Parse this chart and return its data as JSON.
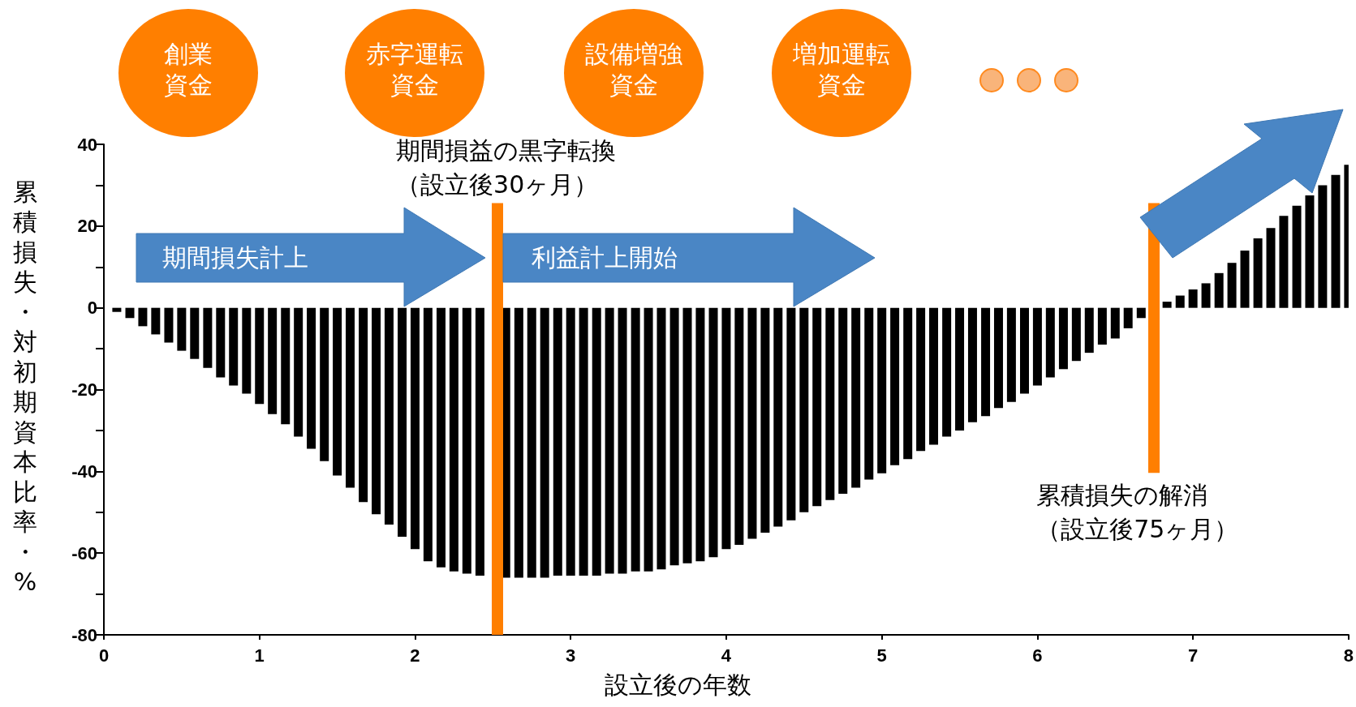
{
  "chart_data": {
    "type": "bar",
    "xlabel": "設立後の年数",
    "ylabel": "累積損失・対初期資本比率・%",
    "x": [
      0.083,
      0.167,
      0.25,
      0.333,
      0.417,
      0.5,
      0.583,
      0.667,
      0.75,
      0.833,
      0.917,
      1.0,
      1.083,
      1.167,
      1.25,
      1.333,
      1.417,
      1.5,
      1.583,
      1.667,
      1.75,
      1.833,
      1.917,
      2.0,
      2.083,
      2.167,
      2.25,
      2.333,
      2.417,
      2.5,
      2.583,
      2.667,
      2.75,
      2.833,
      2.917,
      3.0,
      3.083,
      3.167,
      3.25,
      3.333,
      3.417,
      3.5,
      3.583,
      3.667,
      3.75,
      3.833,
      3.917,
      4.0,
      4.083,
      4.167,
      4.25,
      4.333,
      4.417,
      4.5,
      4.583,
      4.667,
      4.75,
      4.833,
      4.917,
      5.0,
      5.083,
      5.167,
      5.25,
      5.333,
      5.417,
      5.5,
      5.583,
      5.667,
      5.75,
      5.833,
      5.917,
      6.0,
      6.083,
      6.167,
      6.25,
      6.333,
      6.417,
      6.5,
      6.583,
      6.667,
      6.75,
      6.833,
      6.917,
      7.0,
      7.083,
      7.167,
      7.25,
      7.333,
      7.417,
      7.5,
      7.583,
      7.667,
      7.75,
      7.833,
      7.917,
      8.0
    ],
    "series": [
      {
        "color": "#000000",
        "values": [
          -1,
          -2.5,
          -4.5,
          -6.5,
          -8.5,
          -10.5,
          -12.5,
          -14.7,
          -17,
          -19,
          -21,
          -23.5,
          -26,
          -28.5,
          -31.5,
          -34.5,
          -37.5,
          -41,
          -44,
          -47.5,
          -50.5,
          -53,
          -56,
          -59,
          -62,
          -63.5,
          -64.5,
          -65,
          -65.5,
          null,
          -66,
          -66,
          -66,
          -66,
          -65.5,
          -65.5,
          -65.5,
          -65.5,
          -65,
          -65,
          -64.5,
          -64.5,
          -64,
          -63,
          -62.5,
          -62,
          -61,
          -59,
          -58,
          -56.5,
          -55,
          -53.5,
          -52,
          -50,
          -48.5,
          -47,
          -45.5,
          -44,
          -42,
          -40.5,
          -38.5,
          -37,
          -35,
          -33.5,
          -31.5,
          -30,
          -28,
          -26.5,
          -24.5,
          -23,
          -21,
          -19,
          -17,
          -15,
          -13,
          -11,
          -9,
          -7.5,
          -5,
          -2.5,
          null,
          1.5,
          3,
          4.5,
          6,
          8.5,
          11,
          14,
          17,
          19.5,
          22.5,
          25,
          27.5,
          30,
          32.5,
          35
        ]
      }
    ],
    "xlim": [
      0,
      8
    ],
    "xticks": [
      0,
      1,
      2,
      3,
      4,
      5,
      6,
      7,
      8
    ],
    "ylim": [
      -80,
      40
    ],
    "yticks": [
      {
        "value": -80,
        "label": "-80"
      },
      {
        "value": -70,
        "label": null
      },
      {
        "value": -60,
        "label": "-60"
      },
      {
        "value": -50,
        "label": null
      },
      {
        "value": -40,
        "label": "-40"
      },
      {
        "value": -30,
        "label": null
      },
      {
        "value": -20,
        "label": "-20"
      },
      {
        "value": -10,
        "label": null
      },
      {
        "value": 0,
        "label": "0"
      },
      {
        "value": 10,
        "label": null
      },
      {
        "value": 20,
        "label": "20"
      },
      {
        "value": 30,
        "label": null
      },
      {
        "value": 40,
        "label": "40"
      }
    ],
    "ref_lines": [
      {
        "axis": "x",
        "value": 2.53,
        "label": "期間損益の黒字転換（設立後30ヶ月）",
        "color": "#ff7f00"
      },
      {
        "axis": "x",
        "value": 6.75,
        "label": "累積損失の解消（設立後75ヶ月）",
        "color": "#ff7f00"
      }
    ],
    "annotations": [
      "創業資金",
      "赤字運転資金",
      "設備増強資金",
      "増加運転資金",
      "期間損失計上",
      "利益計上開始"
    ],
    "grid": false
  }
}
